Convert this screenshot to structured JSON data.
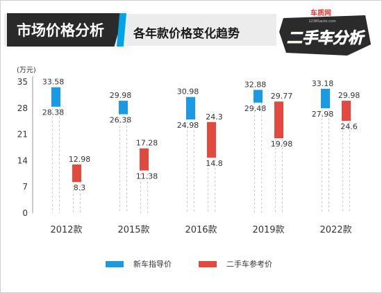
{
  "header": {
    "title": "市场价格分析",
    "subtitle": "各年款价格变化趋势"
  },
  "logo": {
    "site_name": "车质网",
    "site_url": "12365auto.com",
    "badge_text": "二手车分析"
  },
  "colors": {
    "new_car": "#1a9ae3",
    "used_car": "#e14a3f",
    "accent_stripe": "#00a4e6"
  },
  "chart_data": {
    "type": "bar",
    "unit_label": "(万元)",
    "categories": [
      "2012款",
      "2015款",
      "2016款",
      "2019款",
      "2022款"
    ],
    "ylim": [
      0,
      35
    ],
    "yticks": [
      0,
      7,
      14,
      21,
      28,
      35
    ],
    "grid": false,
    "legend_position": "bottom",
    "series": [
      {
        "name": "新车指导价",
        "ranges": [
          [
            28.38,
            33.58
          ],
          [
            26.38,
            29.98
          ],
          [
            24.98,
            30.98
          ],
          [
            29.48,
            32.88
          ],
          [
            27.98,
            33.18
          ]
        ],
        "high_labels": [
          "33.58",
          "29.98",
          "30.98",
          "32.88",
          "33.18"
        ],
        "low_labels": [
          "28.38",
          "26.38",
          "24.98",
          "29.48",
          "27.98"
        ]
      },
      {
        "name": "二手车参考价",
        "ranges": [
          [
            8.3,
            12.98
          ],
          [
            11.38,
            17.28
          ],
          [
            14.8,
            24.3
          ],
          [
            19.98,
            29.77
          ],
          [
            24.6,
            29.98
          ]
        ],
        "high_labels": [
          "12.98",
          "17.28",
          "24.3",
          "29.77",
          "29.98"
        ],
        "low_labels": [
          "8.3",
          "11.38",
          "14.8",
          "19.98",
          "24.6"
        ]
      }
    ]
  }
}
